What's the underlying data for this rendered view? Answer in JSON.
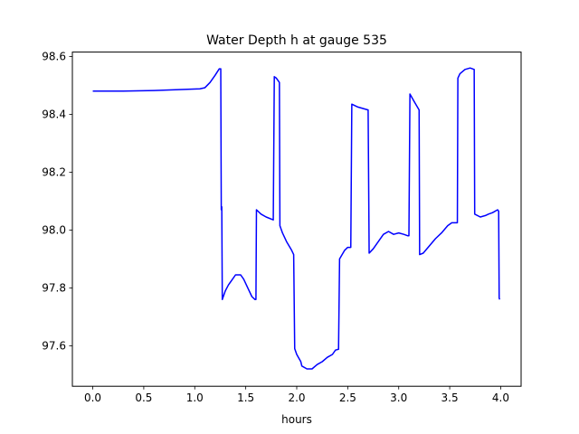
{
  "chart_data": {
    "type": "line",
    "title": "Water Depth h at gauge 535",
    "xlabel": "hours",
    "ylabel": "",
    "xlim": [
      -0.2,
      4.2
    ],
    "ylim": [
      97.46,
      98.615
    ],
    "xticks": [
      0.0,
      0.5,
      1.0,
      1.5,
      2.0,
      2.5,
      3.0,
      3.5,
      4.0
    ],
    "xtick_labels": [
      "0.0",
      "0.5",
      "1.0",
      "1.5",
      "2.0",
      "2.5",
      "3.0",
      "3.5",
      "4.0"
    ],
    "yticks": [
      97.6,
      97.8,
      98.0,
      98.2,
      98.4,
      98.6
    ],
    "ytick_labels": [
      "97.6",
      "97.8",
      "98.0",
      "98.2",
      "98.4",
      "98.6"
    ],
    "grid": false,
    "line_color": "#0000ff",
    "series": [
      {
        "x": [
          0.0,
          0.3,
          0.6,
          0.9,
          1.05,
          1.1,
          1.15,
          1.2,
          1.24,
          1.255,
          1.26,
          1.265,
          1.27,
          1.28,
          1.3,
          1.33,
          1.37,
          1.4,
          1.45,
          1.48,
          1.52,
          1.56,
          1.59,
          1.6,
          1.605,
          1.65,
          1.7,
          1.77,
          1.78,
          1.8,
          1.83,
          1.835,
          1.86,
          1.9,
          1.95,
          1.97,
          1.98,
          2.0,
          2.04,
          2.05,
          2.1,
          2.15,
          2.2,
          2.25,
          2.3,
          2.35,
          2.38,
          2.41,
          2.42,
          2.47,
          2.5,
          2.53,
          2.54,
          2.6,
          2.65,
          2.7,
          2.71,
          2.75,
          2.8,
          2.85,
          2.9,
          2.95,
          3.0,
          3.05,
          3.09,
          3.1,
          3.11,
          3.15,
          3.2,
          3.205,
          3.24,
          3.3,
          3.36,
          3.42,
          3.48,
          3.52,
          3.575,
          3.58,
          3.6,
          3.65,
          3.7,
          3.74,
          3.745,
          3.8,
          3.85,
          3.88,
          3.92,
          3.97,
          3.98,
          3.985,
          3.99
        ],
        "y": [
          98.48,
          98.48,
          98.482,
          98.486,
          98.488,
          98.492,
          98.51,
          98.535,
          98.557,
          98.557,
          98.07,
          98.08,
          97.76,
          97.77,
          97.79,
          97.81,
          97.83,
          97.845,
          97.845,
          97.83,
          97.8,
          97.77,
          97.76,
          97.76,
          98.07,
          98.055,
          98.045,
          98.035,
          98.53,
          98.525,
          98.51,
          98.015,
          97.99,
          97.96,
          97.93,
          97.915,
          97.59,
          97.57,
          97.545,
          97.53,
          97.52,
          97.52,
          97.535,
          97.545,
          97.56,
          97.57,
          97.585,
          97.588,
          97.9,
          97.93,
          97.94,
          97.94,
          98.435,
          98.425,
          98.42,
          98.415,
          97.92,
          97.935,
          97.96,
          97.985,
          97.995,
          97.985,
          97.99,
          97.985,
          97.98,
          97.98,
          98.47,
          98.445,
          98.415,
          97.915,
          97.92,
          97.945,
          97.97,
          97.99,
          98.015,
          98.025,
          98.025,
          98.525,
          98.54,
          98.555,
          98.56,
          98.555,
          98.055,
          98.045,
          98.05,
          98.055,
          98.06,
          98.07,
          98.065,
          97.765,
          97.76
        ]
      }
    ]
  }
}
